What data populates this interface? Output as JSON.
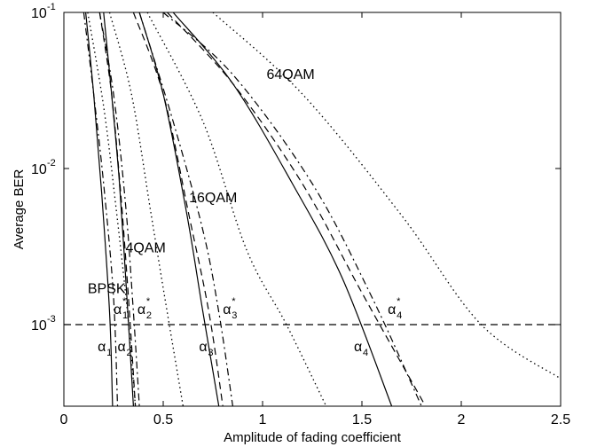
{
  "chart_data": {
    "type": "line",
    "xlabel": "Amplitude of fading coefficient",
    "ylabel": "Average BER",
    "xlim": [
      0,
      2.5
    ],
    "ylim": [
      0.0003,
      0.1
    ],
    "yscale": "log",
    "x_ticks": [
      "0",
      "0.5",
      "1",
      "1.5",
      "2",
      "2.5"
    ],
    "y_ticks": [
      {
        "base": "10",
        "exp": "-1"
      },
      {
        "base": "10",
        "exp": "-2"
      },
      {
        "base": "10",
        "exp": "-3"
      }
    ],
    "grid": false,
    "legend": "none",
    "series": [
      {
        "style": "solid",
        "points": [
          [
            0.11,
            0.1
          ],
          [
            0.15,
            0.03
          ],
          [
            0.19,
            0.007
          ],
          [
            0.23,
            0.0012
          ],
          [
            0.245,
            0.0003
          ]
        ]
      },
      {
        "style": "dashdot",
        "points": [
          [
            0.1,
            0.1
          ],
          [
            0.15,
            0.03
          ],
          [
            0.2,
            0.008
          ],
          [
            0.25,
            0.0015
          ],
          [
            0.27,
            0.0003
          ]
        ]
      },
      {
        "style": "dotted",
        "points": [
          [
            0.12,
            0.1
          ],
          [
            0.2,
            0.025
          ],
          [
            0.26,
            0.006
          ],
          [
            0.32,
            0.0012
          ],
          [
            0.36,
            0.0003
          ]
        ]
      },
      {
        "style": "solid",
        "points": [
          [
            0.2,
            0.1
          ],
          [
            0.24,
            0.03
          ],
          [
            0.28,
            0.008
          ],
          [
            0.32,
            0.0013
          ],
          [
            0.35,
            0.0003
          ]
        ]
      },
      {
        "style": "dashed",
        "points": [
          [
            0.18,
            0.1
          ],
          [
            0.24,
            0.03
          ],
          [
            0.29,
            0.006
          ],
          [
            0.33,
            0.0012
          ],
          [
            0.36,
            0.0003
          ]
        ]
      },
      {
        "style": "dashdot",
        "points": [
          [
            0.18,
            0.1
          ],
          [
            0.25,
            0.03
          ],
          [
            0.31,
            0.006
          ],
          [
            0.35,
            0.0012
          ],
          [
            0.38,
            0.0003
          ]
        ]
      },
      {
        "style": "dotted",
        "points": [
          [
            0.23,
            0.1
          ],
          [
            0.34,
            0.03
          ],
          [
            0.44,
            0.005
          ],
          [
            0.52,
            0.0012
          ],
          [
            0.6,
            0.0003
          ]
        ]
      },
      {
        "style": "solid",
        "points": [
          [
            0.38,
            0.1
          ],
          [
            0.5,
            0.03
          ],
          [
            0.62,
            0.005
          ],
          [
            0.7,
            0.0012
          ],
          [
            0.78,
            0.0003
          ]
        ]
      },
      {
        "style": "dashed",
        "points": [
          [
            0.35,
            0.1
          ],
          [
            0.5,
            0.03
          ],
          [
            0.63,
            0.005
          ],
          [
            0.73,
            0.0012
          ],
          [
            0.8,
            0.0003
          ]
        ]
      },
      {
        "style": "dashdot",
        "points": [
          [
            0.38,
            0.1
          ],
          [
            0.55,
            0.02
          ],
          [
            0.7,
            0.004
          ],
          [
            0.78,
            0.0012
          ],
          [
            0.85,
            0.0003
          ]
        ]
      },
      {
        "style": "dotted",
        "points": [
          [
            0.42,
            0.1
          ],
          [
            0.7,
            0.02
          ],
          [
            0.92,
            0.003
          ],
          [
            1.12,
            0.001
          ],
          [
            1.32,
            0.0003
          ]
        ]
      },
      {
        "style": "solid",
        "points": [
          [
            0.55,
            0.1
          ],
          [
            0.85,
            0.035
          ],
          [
            1.15,
            0.008
          ],
          [
            1.4,
            0.002
          ],
          [
            1.65,
            0.0003
          ]
        ]
      },
      {
        "style": "dashed",
        "points": [
          [
            0.52,
            0.1
          ],
          [
            0.85,
            0.035
          ],
          [
            1.2,
            0.008
          ],
          [
            1.5,
            0.0016
          ],
          [
            1.82,
            0.0003
          ]
        ]
      },
      {
        "style": "dashdot",
        "points": [
          [
            0.5,
            0.1
          ],
          [
            0.85,
            0.04
          ],
          [
            1.25,
            0.008
          ],
          [
            1.55,
            0.0015
          ],
          [
            1.8,
            0.0003
          ]
        ]
      },
      {
        "style": "dotted",
        "points": [
          [
            0.75,
            0.1
          ],
          [
            1.2,
            0.03
          ],
          [
            1.7,
            0.005
          ],
          [
            2.1,
            0.001
          ],
          [
            2.5,
            0.00045
          ]
        ]
      },
      {
        "style": "dashed",
        "points": [
          [
            0.0,
            0.001
          ],
          [
            2.5,
            0.001
          ]
        ]
      }
    ],
    "annotations": [
      {
        "text": "64QAM",
        "x": 1.02,
        "y": 0.04
      },
      {
        "text": "16QAM",
        "x": 0.63,
        "y": 0.0065
      },
      {
        "text": "4QAM",
        "x": 0.31,
        "y": 0.0031
      },
      {
        "text": "BPSK",
        "x": 0.12,
        "y": 0.0017
      },
      {
        "greek": "α",
        "sub": "1",
        "star": true,
        "x": 0.25,
        "y": 0.00125
      },
      {
        "greek": "α",
        "sub": "2",
        "star": true,
        "x": 0.37,
        "y": 0.00125
      },
      {
        "greek": "α",
        "sub": "3",
        "star": true,
        "x": 0.8,
        "y": 0.00125
      },
      {
        "greek": "α",
        "sub": "4",
        "star": true,
        "x": 1.63,
        "y": 0.00125
      },
      {
        "greek": "α",
        "sub": "1",
        "star": false,
        "x": 0.17,
        "y": 0.00072
      },
      {
        "greek": "α",
        "sub": "2",
        "star": false,
        "x": 0.27,
        "y": 0.00072
      },
      {
        "greek": "α",
        "sub": "3",
        "star": false,
        "x": 0.68,
        "y": 0.00072
      },
      {
        "greek": "α",
        "sub": "4",
        "star": false,
        "x": 1.46,
        "y": 0.00072
      }
    ]
  }
}
